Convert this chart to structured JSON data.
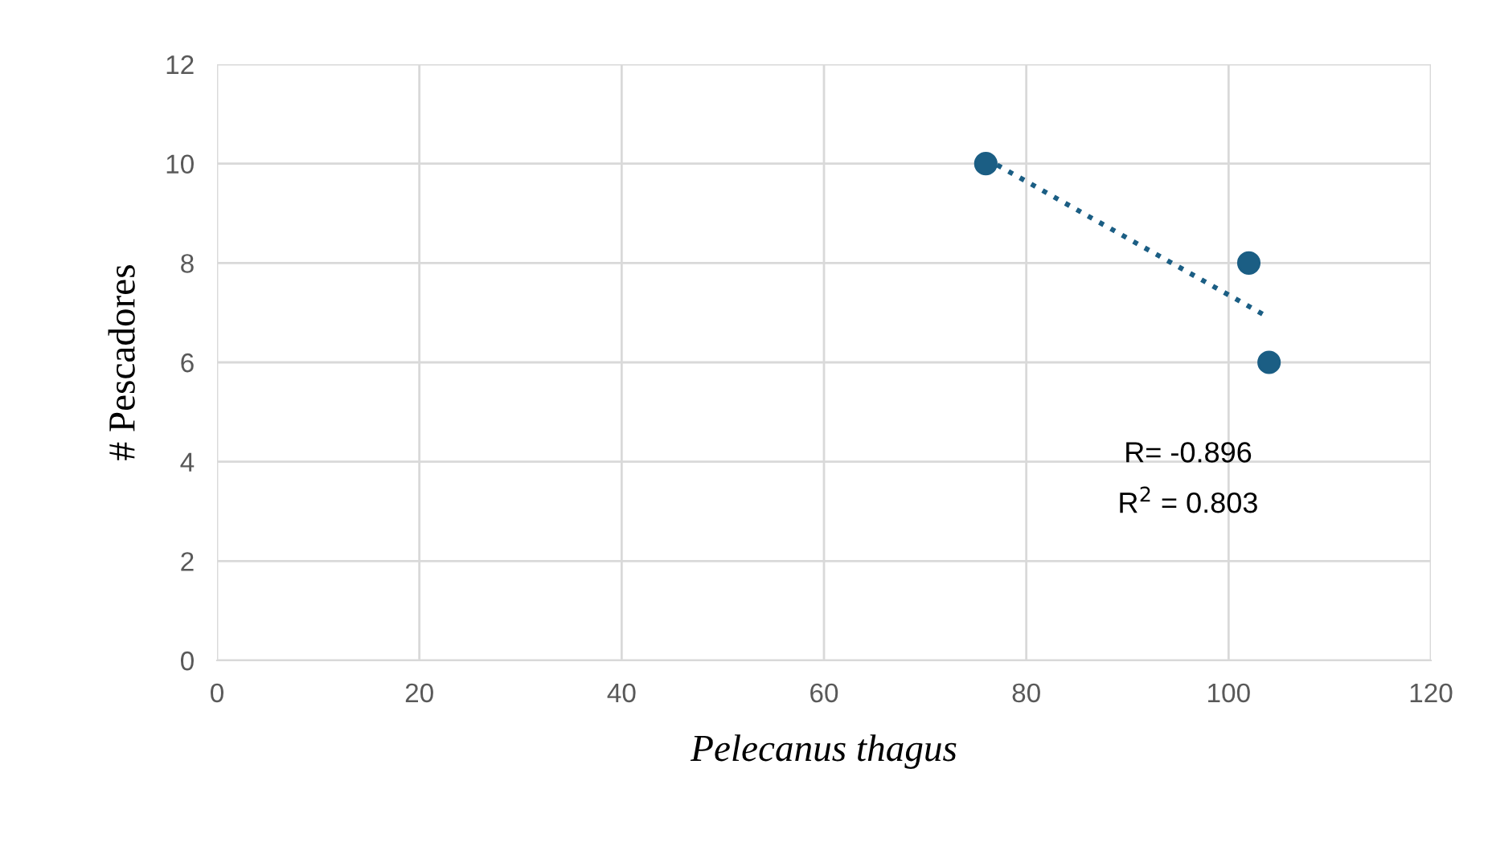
{
  "chart_data": {
    "type": "scatter",
    "xlabel": "Pelecanus thagus",
    "ylabel": "# Pescadores",
    "series": [
      {
        "color": "#1b5e84",
        "x": [
          76,
          102,
          104
        ],
        "values": [
          10,
          8,
          6
        ],
        "marker": "circle"
      },
      {
        "type": "line",
        "color": "#1b5e84",
        "x": [
          76,
          104
        ],
        "values": [
          10.1,
          6.9
        ],
        "line_style": "dotted",
        "marker": "none"
      }
    ],
    "xlim": [
      0,
      120
    ],
    "xticks": [
      0,
      20,
      40,
      60,
      80,
      100,
      120
    ],
    "ylim": [
      0,
      12
    ],
    "yticks": [
      0,
      2,
      4,
      6,
      8,
      10,
      12
    ],
    "grid": true,
    "legend": false,
    "annotations": [
      {
        "text": "R= -0.896"
      },
      {
        "text": "R$^{2}$ = 0.803"
      }
    ]
  }
}
